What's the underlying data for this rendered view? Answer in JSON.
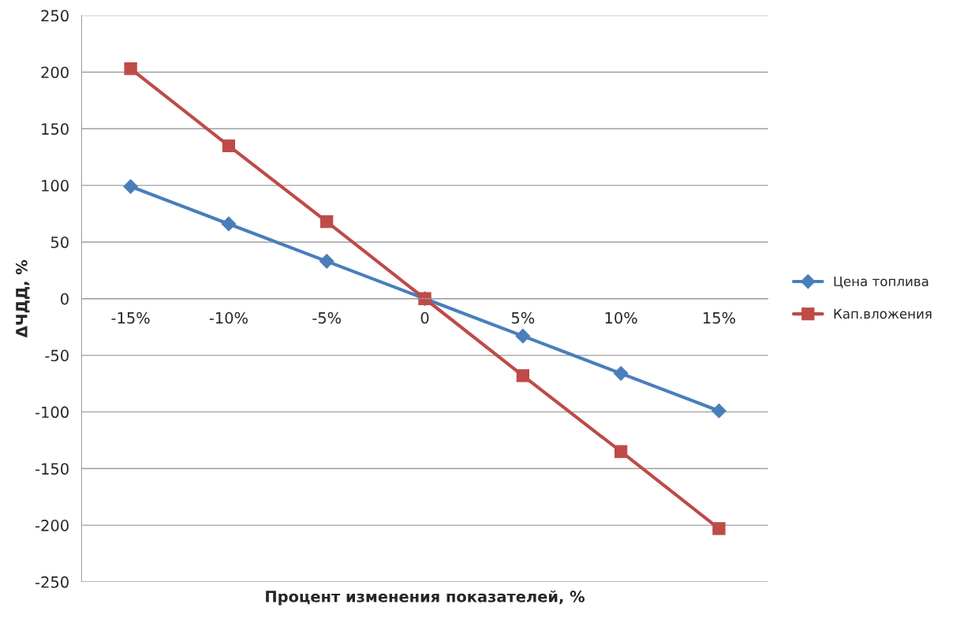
{
  "chart_data": {
    "type": "line",
    "xlabel": "Процент изменения показателей, %",
    "ylabel": "ΔЧДД, %",
    "categories": [
      "-15%",
      "-10%",
      "-5%",
      "0",
      "5%",
      "10%",
      "15%"
    ],
    "series": [
      {
        "name": "Цена топлива",
        "color": "#4a7ebb",
        "marker": "diamond",
        "values": [
          99,
          66,
          33,
          0,
          -33,
          -66,
          -99
        ]
      },
      {
        "name": "Кап.вложения",
        "color": "#be4b48",
        "marker": "square",
        "values": [
          203,
          135,
          68,
          0,
          -68,
          -135,
          -203
        ]
      }
    ],
    "ylim": [
      -250,
      250
    ],
    "yticks": [
      -250,
      -200,
      -150,
      -100,
      -50,
      0,
      50,
      100,
      150,
      200,
      250
    ],
    "grid": "y",
    "legend": "right",
    "line_style": "solid"
  }
}
